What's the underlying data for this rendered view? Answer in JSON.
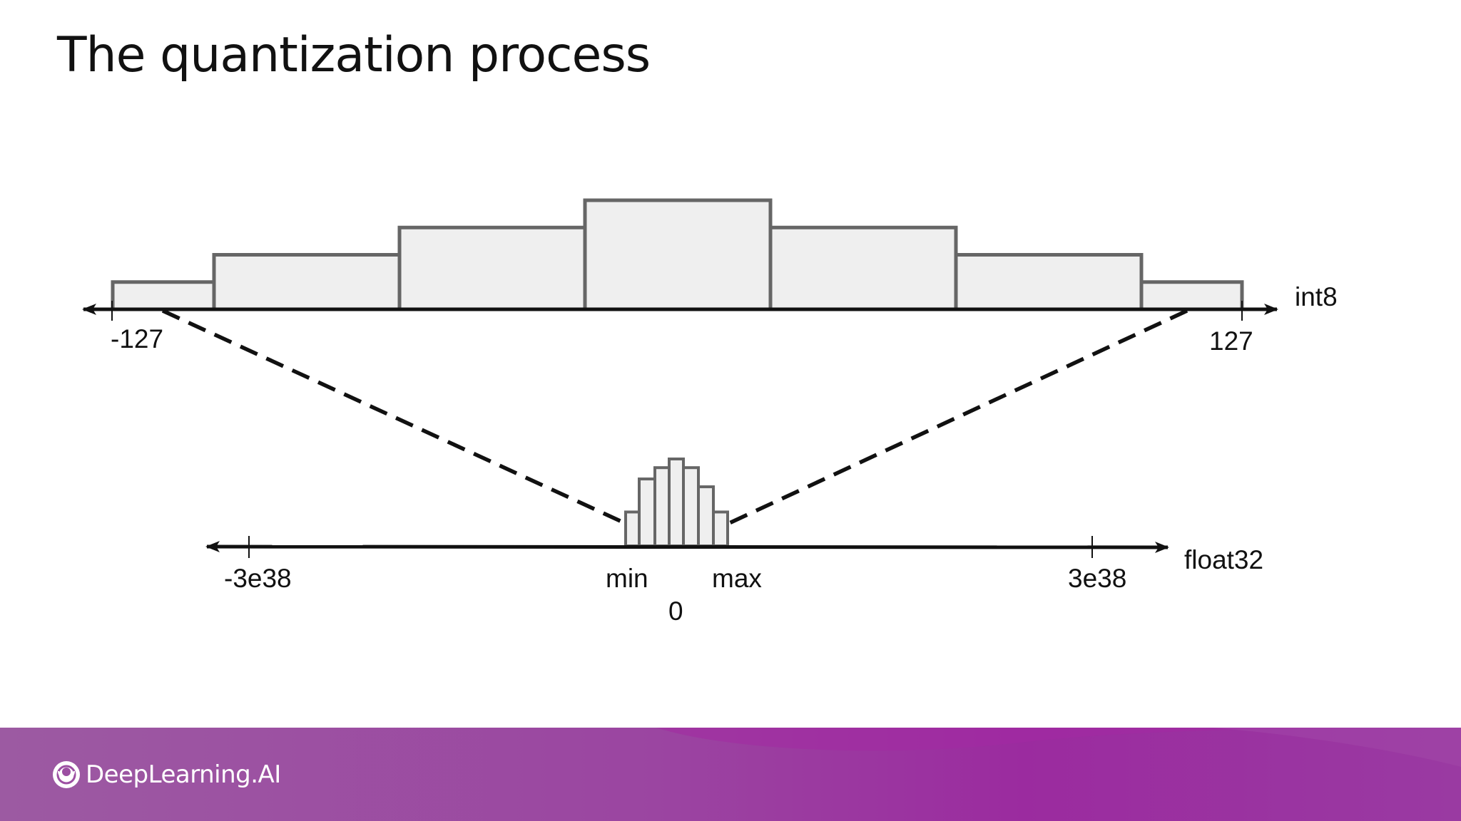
{
  "title": "The quantization process",
  "int8_axis": {
    "name": "int8",
    "min_label": "-127",
    "max_label": "127",
    "histogram_relative_heights": [
      0.25,
      0.5,
      0.75,
      1.0,
      0.75,
      0.5,
      0.25
    ]
  },
  "float32_axis": {
    "name": "float32",
    "min_label": "-3e38",
    "max_label": "3e38",
    "range_min_label": "min",
    "range_max_label": "max",
    "zero_label": "0",
    "histogram_relative_heights": [
      0.39,
      0.77,
      0.9,
      1.0,
      0.9,
      0.68,
      0.39
    ]
  },
  "colors": {
    "bar_fill": "#efefef",
    "bar_stroke": "#666666",
    "axis": "#111111",
    "footer_left": "#9c5aa2",
    "footer_right": "#9a3aa2"
  },
  "footer": {
    "brand_name": "DeepLearning.AI",
    "logo_icon": "deeplearning-ai-logo-icon"
  }
}
